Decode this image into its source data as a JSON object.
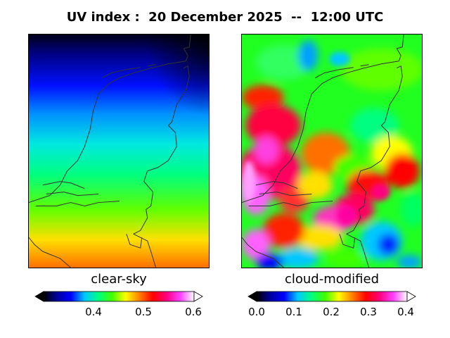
{
  "title": "UV index :  20 December 2025  --  12:00 UTC",
  "panels": {
    "left": {
      "label": "clear-sky",
      "colorbar_ticks": [
        "0.4",
        "0.5",
        "0.6"
      ],
      "tick_values": [
        0.4,
        0.5,
        0.6
      ],
      "range": [
        0.3,
        0.6
      ]
    },
    "right": {
      "label": "cloud-modified",
      "colorbar_ticks": [
        "0.0",
        "0.1",
        "0.2",
        "0.3",
        "0.4"
      ],
      "tick_values": [
        0.0,
        0.1,
        0.2,
        0.3,
        0.4
      ],
      "range": [
        0.0,
        0.4
      ]
    }
  },
  "colormap": [
    "#000000",
    "#0000a0",
    "#0000ff",
    "#00c8ff",
    "#00ff80",
    "#40ff00",
    "#ffff00",
    "#ff8000",
    "#ff0000",
    "#ff0080",
    "#ff40ff",
    "#ffffff"
  ]
}
